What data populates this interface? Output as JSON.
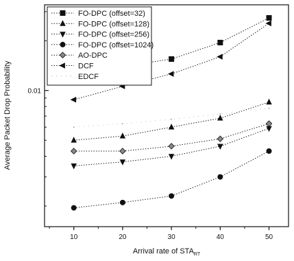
{
  "chart_data": {
    "type": "line",
    "title": "",
    "xlabel": "Arrival rate of STA",
    "xlabel_subscript": "RT",
    "ylabel": "Average Packet Drop Probability",
    "x": [
      10,
      20,
      30,
      40,
      50
    ],
    "x_ticks": [
      "10",
      "20",
      "30",
      "40",
      "50"
    ],
    "xlim": [
      4,
      54
    ],
    "ylim": [
      0.0015,
      0.033
    ],
    "yscale": "log",
    "y_tick_labels": [
      {
        "value": 0.01,
        "label": "0.01"
      }
    ],
    "y_minor_ticks": [
      0.002,
      0.003,
      0.004,
      0.005,
      0.006,
      0.007,
      0.008,
      0.009,
      0.02,
      0.03
    ],
    "grid": false,
    "legend_position": "top-left",
    "series": [
      {
        "name": "FO-DPC (offset=32)",
        "marker": "square",
        "values": [
          0.0135,
          0.014,
          0.0155,
          0.0195,
          0.0275
        ]
      },
      {
        "name": "FO-DPC (offset=128)",
        "marker": "triangle-up",
        "values": [
          0.005,
          0.0053,
          0.006,
          0.0068,
          0.0085
        ]
      },
      {
        "name": "FO-DPC (offset=256)",
        "marker": "triangle-down",
        "values": [
          0.0035,
          0.0037,
          0.004,
          0.0046,
          0.0059
        ]
      },
      {
        "name": "FO-DPC (offset=1024)",
        "marker": "circle",
        "values": [
          0.00195,
          0.0021,
          0.0023,
          0.003,
          0.0043
        ]
      },
      {
        "name": "AO-DPC",
        "marker": "diamond",
        "values": [
          0.0043,
          0.0043,
          0.0046,
          0.0051,
          0.0063
        ]
      },
      {
        "name": "DCF",
        "marker": "triangle-left",
        "values": [
          0.0088,
          0.0106,
          0.0126,
          0.016,
          0.0255
        ]
      },
      {
        "name": "EDCF",
        "marker": "none",
        "values": [
          0.006,
          0.0063,
          0.0067,
          0.0072,
          0.0078
        ]
      }
    ]
  }
}
